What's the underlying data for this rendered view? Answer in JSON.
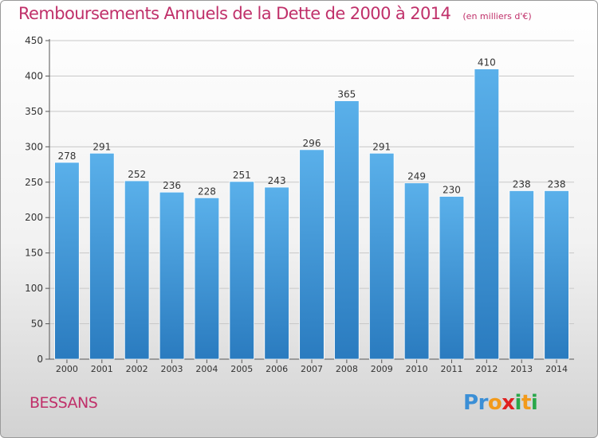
{
  "title": "Remboursements Annuels de la Dette de 2000 à 2014",
  "subtitle": "(en milliers d'€)",
  "commune": "BESSANS",
  "brand": {
    "letters": [
      "P",
      "r",
      "o",
      "x",
      "i",
      "t",
      "i"
    ],
    "colors": [
      "#3b8fd6",
      "#3b8fd6",
      "#f29a1a",
      "#e02020",
      "#2aa84a",
      "#f29a1a",
      "#2aa84a"
    ]
  },
  "colors": {
    "bar_top": "#5ab0ea",
    "bar_bottom": "#2a7bbf",
    "title": "#c0306a",
    "grid": "#c8c8c8"
  },
  "chart_data": {
    "type": "bar",
    "categories": [
      "2000",
      "2001",
      "2002",
      "2003",
      "2004",
      "2005",
      "2006",
      "2007",
      "2008",
      "2009",
      "2010",
      "2011",
      "2012",
      "2013",
      "2014"
    ],
    "values": [
      278,
      291,
      252,
      236,
      228,
      251,
      243,
      296,
      365,
      291,
      249,
      230,
      410,
      238,
      238
    ],
    "yticks": [
      0,
      50,
      100,
      150,
      200,
      250,
      300,
      350,
      400,
      450
    ],
    "ylim": [
      0,
      450
    ],
    "grid": true,
    "title": "Remboursements Annuels de la Dette de 2000 à 2014",
    "xlabel": "",
    "ylabel": ""
  }
}
